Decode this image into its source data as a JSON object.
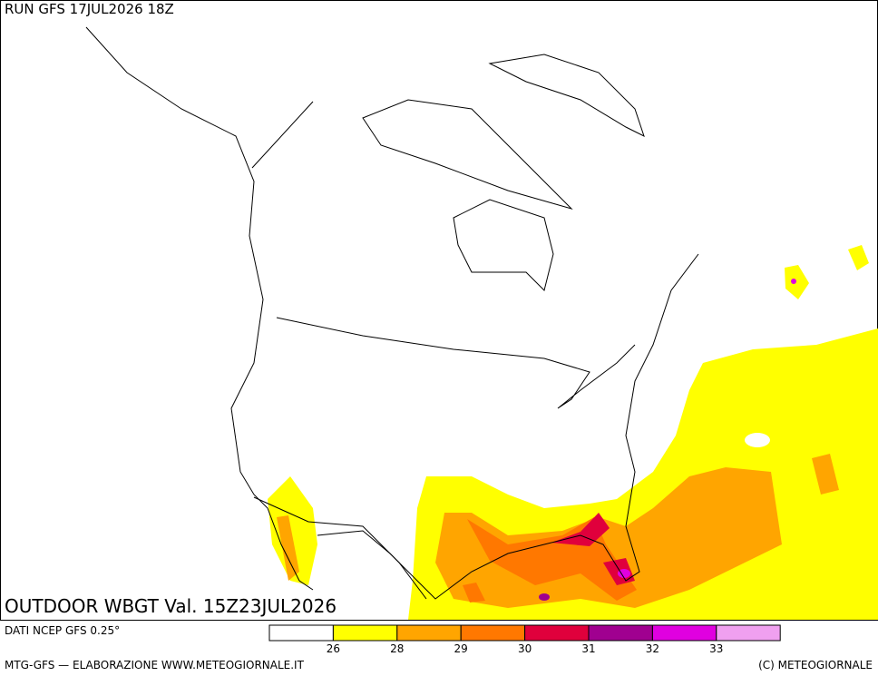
{
  "header": {
    "run": "RUN GFS 17JUL2026 18Z"
  },
  "map": {
    "title": "OUTDOOR WBGT Val. 15Z23JUL2026"
  },
  "legend": {
    "source": "DATI NCEP GFS 0.25°",
    "colors": [
      "#ffffff",
      "#ffff00",
      "#ffa500",
      "#ff7800",
      "#e0003c",
      "#a00090",
      "#e000e0",
      "#f0a0f0"
    ],
    "ticks": [
      26,
      28,
      29,
      30,
      31,
      32,
      33
    ]
  },
  "footer": {
    "left": "MTG-GFS — ELABORAZIONE WWW.METEOGIORNALE.IT",
    "right": "(C) METEOGIORNALE"
  }
}
